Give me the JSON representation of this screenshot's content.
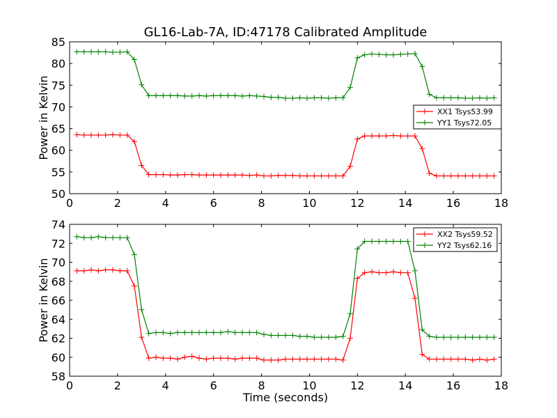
{
  "title": "GL16-Lab-7A, ID:47178 Calibrated Amplitude",
  "colors": {
    "XX": "#ff0000",
    "YY": "#008000"
  },
  "chart_data": [
    {
      "type": "line",
      "title": "GL16-Lab-7A, ID:47178 Calibrated Amplitude",
      "xlabel": "",
      "ylabel": "Power in Kelvin",
      "xlim": [
        0,
        18
      ],
      "ylim": [
        50,
        85
      ],
      "xticks": [
        0,
        2,
        4,
        6,
        8,
        10,
        12,
        14,
        16,
        18
      ],
      "yticks": [
        50,
        55,
        60,
        65,
        70,
        75,
        80,
        85
      ],
      "grid": false,
      "legend": "right",
      "x": [
        0.3,
        0.6,
        0.9,
        1.2,
        1.5,
        1.8,
        2.1,
        2.4,
        2.7,
        3.0,
        3.3,
        3.6,
        3.9,
        4.2,
        4.5,
        4.8,
        5.1,
        5.4,
        5.7,
        6.0,
        6.3,
        6.6,
        6.9,
        7.2,
        7.5,
        7.8,
        8.1,
        8.4,
        8.7,
        9.0,
        9.3,
        9.6,
        9.9,
        10.2,
        10.5,
        10.8,
        11.1,
        11.4,
        11.7,
        12.0,
        12.3,
        12.6,
        12.9,
        13.2,
        13.5,
        13.8,
        14.1,
        14.4,
        14.7,
        15.0,
        15.3,
        15.6,
        15.9,
        16.2,
        16.5,
        16.8,
        17.1,
        17.4,
        17.7
      ],
      "series": [
        {
          "name": "XX1 Tsys53.99",
          "color": "#ff0000",
          "values": [
            63.6,
            63.5,
            63.5,
            63.5,
            63.5,
            63.6,
            63.5,
            63.5,
            62.0,
            56.5,
            54.4,
            54.4,
            54.4,
            54.3,
            54.3,
            54.4,
            54.4,
            54.3,
            54.3,
            54.3,
            54.3,
            54.3,
            54.3,
            54.3,
            54.2,
            54.3,
            54.1,
            54.1,
            54.2,
            54.2,
            54.2,
            54.1,
            54.1,
            54.1,
            54.1,
            54.1,
            54.1,
            54.1,
            56.3,
            62.6,
            63.3,
            63.3,
            63.3,
            63.3,
            63.4,
            63.3,
            63.3,
            63.3,
            60.4,
            54.7,
            54.1,
            54.1,
            54.1,
            54.1,
            54.1,
            54.1,
            54.1,
            54.1,
            54.1
          ]
        },
        {
          "name": "YY1 Tsys72.05",
          "color": "#008000",
          "values": [
            82.7,
            82.7,
            82.7,
            82.7,
            82.7,
            82.6,
            82.6,
            82.7,
            80.9,
            75.1,
            72.6,
            72.6,
            72.6,
            72.6,
            72.6,
            72.5,
            72.5,
            72.6,
            72.5,
            72.6,
            72.6,
            72.6,
            72.6,
            72.5,
            72.6,
            72.5,
            72.4,
            72.2,
            72.2,
            72.0,
            72.0,
            72.1,
            72.0,
            72.1,
            72.1,
            72.0,
            72.1,
            72.1,
            74.5,
            81.3,
            82.0,
            82.2,
            82.1,
            82.0,
            82.0,
            82.1,
            82.2,
            82.3,
            79.3,
            72.9,
            72.1,
            72.1,
            72.1,
            72.1,
            72.0,
            72.0,
            72.1,
            72.0,
            72.1
          ]
        }
      ]
    },
    {
      "type": "line",
      "title": "",
      "xlabel": "Time (seconds)",
      "ylabel": "Power in Kelvin",
      "xlim": [
        0,
        18
      ],
      "ylim": [
        58,
        74
      ],
      "xticks": [
        0,
        2,
        4,
        6,
        8,
        10,
        12,
        14,
        16,
        18
      ],
      "yticks": [
        58,
        60,
        62,
        64,
        66,
        68,
        70,
        72,
        74
      ],
      "grid": false,
      "legend": "top-right",
      "x": [
        0.3,
        0.6,
        0.9,
        1.2,
        1.5,
        1.8,
        2.1,
        2.4,
        2.7,
        3.0,
        3.3,
        3.6,
        3.9,
        4.2,
        4.5,
        4.8,
        5.1,
        5.4,
        5.7,
        6.0,
        6.3,
        6.6,
        6.9,
        7.2,
        7.5,
        7.8,
        8.1,
        8.4,
        8.7,
        9.0,
        9.3,
        9.6,
        9.9,
        10.2,
        10.5,
        10.8,
        11.1,
        11.4,
        11.7,
        12.0,
        12.3,
        12.6,
        12.9,
        13.2,
        13.5,
        13.8,
        14.1,
        14.4,
        14.7,
        15.0,
        15.3,
        15.6,
        15.9,
        16.2,
        16.5,
        16.8,
        17.1,
        17.4,
        17.7
      ],
      "series": [
        {
          "name": "XX2 Tsys59.52",
          "color": "#ff0000",
          "values": [
            69.1,
            69.1,
            69.2,
            69.1,
            69.2,
            69.2,
            69.1,
            69.1,
            67.5,
            62.1,
            59.9,
            60.0,
            59.9,
            59.9,
            59.8,
            60.0,
            60.1,
            59.9,
            59.8,
            59.9,
            59.9,
            59.9,
            59.8,
            59.9,
            59.9,
            59.9,
            59.7,
            59.7,
            59.7,
            59.8,
            59.8,
            59.8,
            59.8,
            59.8,
            59.8,
            59.8,
            59.8,
            59.7,
            62.0,
            68.3,
            68.9,
            69.0,
            68.9,
            68.9,
            69.0,
            68.9,
            68.9,
            66.2,
            60.3,
            59.8,
            59.8,
            59.8,
            59.8,
            59.8,
            59.8,
            59.7,
            59.8,
            59.7,
            59.8
          ]
        },
        {
          "name": "YY2 Tsys62.16",
          "color": "#008000",
          "values": [
            72.7,
            72.6,
            72.6,
            72.7,
            72.6,
            72.6,
            72.6,
            72.6,
            70.8,
            65.0,
            62.5,
            62.6,
            62.6,
            62.5,
            62.6,
            62.6,
            62.6,
            62.6,
            62.6,
            62.6,
            62.6,
            62.7,
            62.6,
            62.6,
            62.6,
            62.6,
            62.4,
            62.3,
            62.3,
            62.3,
            62.3,
            62.2,
            62.2,
            62.1,
            62.1,
            62.1,
            62.1,
            62.2,
            64.6,
            71.4,
            72.2,
            72.2,
            72.2,
            72.2,
            72.2,
            72.2,
            72.2,
            69.1,
            62.9,
            62.2,
            62.1,
            62.1,
            62.1,
            62.1,
            62.1,
            62.1,
            62.1,
            62.1,
            62.1
          ]
        }
      ]
    }
  ]
}
